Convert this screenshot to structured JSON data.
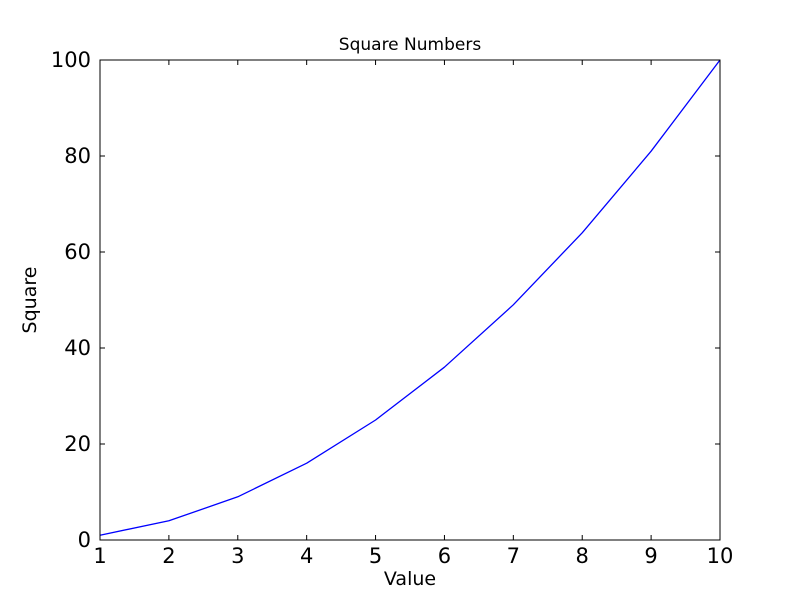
{
  "chart_data": {
    "type": "line",
    "title": "Square Numbers",
    "xlabel": "Value",
    "ylabel": "Square",
    "x": [
      1,
      2,
      3,
      4,
      5,
      6,
      7,
      8,
      9,
      10
    ],
    "y": [
      1,
      4,
      9,
      16,
      25,
      36,
      49,
      64,
      81,
      100
    ],
    "xlim": [
      1,
      10
    ],
    "ylim": [
      0,
      100
    ],
    "xticks": [
      1,
      2,
      3,
      4,
      5,
      6,
      7,
      8,
      9,
      10
    ],
    "yticks": [
      0,
      20,
      40,
      60,
      80,
      100
    ],
    "grid": false,
    "legend": "none",
    "line_color": "#0000ff",
    "axes_color": "#000000",
    "background_color": "#ffffff"
  }
}
